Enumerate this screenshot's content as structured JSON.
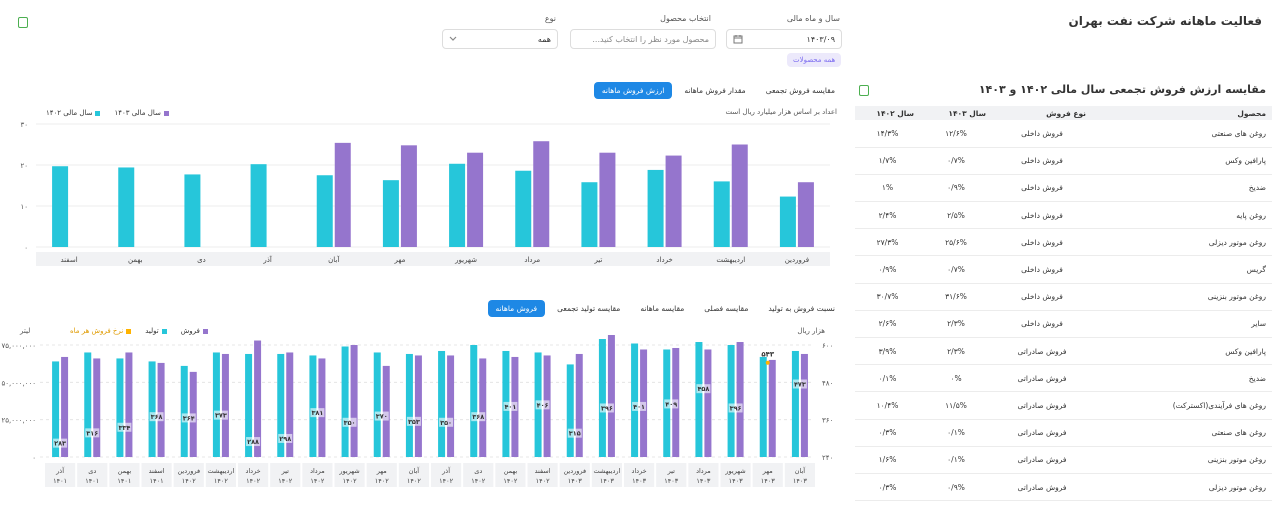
{
  "header": {
    "title": "فعالیت ماهانه شرکت نفت بهران",
    "filters": {
      "period_label": "سال و ماه مالی",
      "period_value": "۱۴۰۳/۰۹",
      "product_label": "انتخاب محصول",
      "product_placeholder": "محصول مورد نظر را انتخاب کنید...",
      "type_label": "نوع",
      "type_value": "همه",
      "all_products_chip": "همه محصولات"
    }
  },
  "table": {
    "title": "مقایسه ارزش فروش تجمعی سال مالی ۱۴۰۲ و ۱۴۰۳",
    "headers": [
      "محصول",
      "نوع فروش",
      "سال ۱۴۰۳",
      "سال ۱۴۰۲"
    ],
    "rows": [
      [
        "روغن های صنعتی",
        "فروش داخلی",
        "۱۲/۶%",
        "۱۴/۳%"
      ],
      [
        "پارافین وکس",
        "فروش داخلی",
        "۰/۷%",
        "۱/۷%"
      ],
      [
        "ضدیخ",
        "فروش داخلی",
        "۰/۹%",
        "۱%"
      ],
      [
        "روغن پایه",
        "فروش داخلی",
        "۲/۵%",
        "۲/۴%"
      ],
      [
        "روغن موتور دیزلی",
        "فروش داخلی",
        "۲۵/۶%",
        "۲۷/۳%"
      ],
      [
        "گریس",
        "فروش داخلی",
        "۰/۷%",
        "۰/۹%"
      ],
      [
        "روغن موتور بنزینی",
        "فروش داخلی",
        "۳۱/۶%",
        "۳۰/۷%"
      ],
      [
        "سایر",
        "فروش داخلی",
        "۲/۳%",
        "۲/۶%"
      ],
      [
        "پارافین وکس",
        "فروش صادراتی",
        "۲/۳%",
        "۳/۹%"
      ],
      [
        "ضدیخ",
        "فروش صادراتی",
        "۰%",
        "۰/۱%"
      ],
      [
        "روغن های فرآیندی(اکسترکت)",
        "فروش صادراتی",
        "۱۱/۵%",
        "۱۰/۴%"
      ],
      [
        "روغن های صنعتی",
        "فروش صادراتی",
        "۰/۱%",
        "۰/۳%"
      ],
      [
        "روغن موتور بنزینی",
        "فروش صادراتی",
        "۰/۱%",
        "۱/۶%"
      ],
      [
        "روغن موتور دیزلی",
        "فروش صادراتی",
        "۰/۹%",
        "۰/۳%"
      ]
    ]
  },
  "chart1": {
    "tabs": [
      "ارزش فروش ماهانه",
      "مقدار فروش ماهانه",
      "مقایسه فروش تجمعی"
    ],
    "note": "اعداد بر اساس هزار میلیارد ریال است",
    "legend": [
      "سال مالی ۱۴۰۳",
      "سال مالی ۱۴۰۲"
    ]
  },
  "chart2": {
    "tabs": [
      "فروش ماهانه",
      "مقایسه تولید تجمعی",
      "مقایسه ماهانه",
      "مقایسه فصلی",
      "نسبت فروش به تولید"
    ],
    "legend": [
      "فروش",
      "تولید",
      "نرخ فروش هر ماه"
    ],
    "left_axis_label": "لیتر",
    "right_axis_label": "هزار ریال"
  },
  "chart_data": [
    {
      "type": "bar",
      "categories": [
        "فروردین",
        "اردیبهشت",
        "خرداد",
        "تیر",
        "مرداد",
        "شهریور",
        "مهر",
        "آبان",
        "آذر",
        "دی",
        "بهمن",
        "اسفند"
      ],
      "series": [
        {
          "name": "سال مالی ۱۴۰۲",
          "values": [
            12.3,
            16,
            18.8,
            15.8,
            18.6,
            20.3,
            16.3,
            17.5,
            20.2,
            17.7,
            19.4,
            19.7
          ]
        },
        {
          "name": "سال مالی ۱۴۰۳",
          "values": [
            15.8,
            25,
            22.3,
            23,
            25.8,
            23,
            24.8,
            25.4,
            null,
            null,
            null,
            null
          ]
        }
      ],
      "y_ticks": [
        "۰",
        "۱۰",
        "۲۰",
        "۳۰"
      ],
      "ylim": [
        0,
        30
      ],
      "colors": {
        "y1402": "#26c6da",
        "y1403": "#9575cd"
      }
    },
    {
      "type": "bar",
      "categories": [
        "آذر ۱۴۰۱",
        "دی ۱۴۰۱",
        "بهمن ۱۴۰۱",
        "اسفند ۱۴۰۱",
        "فروردین ۱۴۰۲",
        "اردیبهشت ۱۴۰۲",
        "خرداد ۱۴۰۲",
        "تیر ۱۴۰۲",
        "مرداد ۱۴۰۲",
        "شهریور ۱۴۰۲",
        "مهر ۱۴۰۲",
        "آبان ۱۴۰۲",
        "آذر ۱۴۰۲",
        "دی ۱۴۰۲",
        "بهمن ۱۴۰۲",
        "اسفند ۱۴۰۲",
        "فروردین ۱۴۰۳",
        "اردیبهشت ۱۴۰۳",
        "خرداد ۱۴۰۳",
        "تیر ۱۴۰۳",
        "مرداد ۱۴۰۳",
        "شهریور ۱۴۰۳",
        "مهر ۱۴۰۳",
        "آبان ۱۴۰۳"
      ],
      "series": [
        {
          "name": "تولید",
          "values": [
            64000000,
            70000000,
            66000000,
            64000000,
            61000000,
            70000000,
            69000000,
            69000000,
            68000000,
            74000000,
            70000000,
            69000000,
            71000000,
            75000000,
            71000000,
            70000000,
            62000000,
            79000000,
            76000000,
            72000000,
            77000000,
            75000000,
            67000000,
            71000000
          ]
        },
        {
          "name": "فروش",
          "values": [
            67000000,
            66000000,
            70000000,
            63000000,
            57000000,
            69000000,
            78000000,
            70000000,
            66000000,
            75000000,
            61000000,
            68000000,
            68000000,
            66000000,
            67000000,
            68000000,
            69000000,
            82000000,
            72000000,
            73000000,
            72000000,
            77000000,
            65000000,
            69000000
          ]
        },
        {
          "name": "نرخ فروش هر ماه",
          "values": [
            283,
            316,
            334,
            368,
            364,
            373,
            288,
            298,
            381,
            350,
            370,
            353,
            350,
            368,
            401,
            406,
            315,
            396,
            401,
            409,
            458,
            396,
            543,
            473
          ]
        }
      ],
      "y_left_ticks": [
        "۰",
        "۲۵,۰۰۰,۰۰۰",
        "۵۰,۰۰۰,۰۰۰",
        "۷۵,۰۰۰,۰۰۰"
      ],
      "y_right_ticks": [
        "۲۴۰",
        "۳۶۰",
        "۴۸۰",
        "۶۰۰"
      ],
      "y_left_lim": [
        0,
        75000000
      ],
      "colors": {
        "production": "#26c6da",
        "sales": "#9575cd",
        "rate": "#ffb300"
      },
      "label_source_series": "نرخ فروش هر ماه",
      "rate_labels": [
        "۲۸۳",
        "۳۱۶",
        "۳۳۴",
        "۳۶۸",
        "۳۶۴",
        "۳۷۳",
        "۲۸۸",
        "۲۹۸",
        "۳۸۱",
        "۳۵۰",
        "۳۷۰",
        "۳۵۳",
        "۳۵۰",
        "۳۶۸",
        "۴۰۱",
        "۴۰۶",
        "۳۱۵",
        "۳۹۶",
        "۴۰۱",
        "۴۰۹",
        "۴۵۸",
        "۳۹۶",
        "۵۴۳",
        "۴۷۳"
      ],
      "x_labels_top": [
        "آذر",
        "دی",
        "بهمن",
        "اسفند",
        "فروردین",
        "اردیبهشت",
        "خرداد",
        "تیر",
        "مرداد",
        "شهریور",
        "مهر",
        "آبان",
        "آذر",
        "دی",
        "بهمن",
        "اسفند",
        "فروردین",
        "اردیبهشت",
        "خرداد",
        "تیر",
        "مرداد",
        "شهریور",
        "مهر",
        "آبان"
      ],
      "x_labels_bottom": [
        "۱۴۰۱",
        "۱۴۰۱",
        "۱۴۰۱",
        "۱۴۰۱",
        "۱۴۰۲",
        "۱۴۰۲",
        "۱۴۰۲",
        "۱۴۰۲",
        "۱۴۰۲",
        "۱۴۰۲",
        "۱۴۰۲",
        "۱۴۰۲",
        "۱۴۰۲",
        "۱۴۰۲",
        "۱۴۰۲",
        "۱۴۰۲",
        "۱۴۰۳",
        "۱۴۰۳",
        "۱۴۰۳",
        "۱۴۰۳",
        "۱۴۰۳",
        "۱۴۰۳",
        "۱۴۰۳",
        "۱۴۰۳"
      ]
    }
  ]
}
